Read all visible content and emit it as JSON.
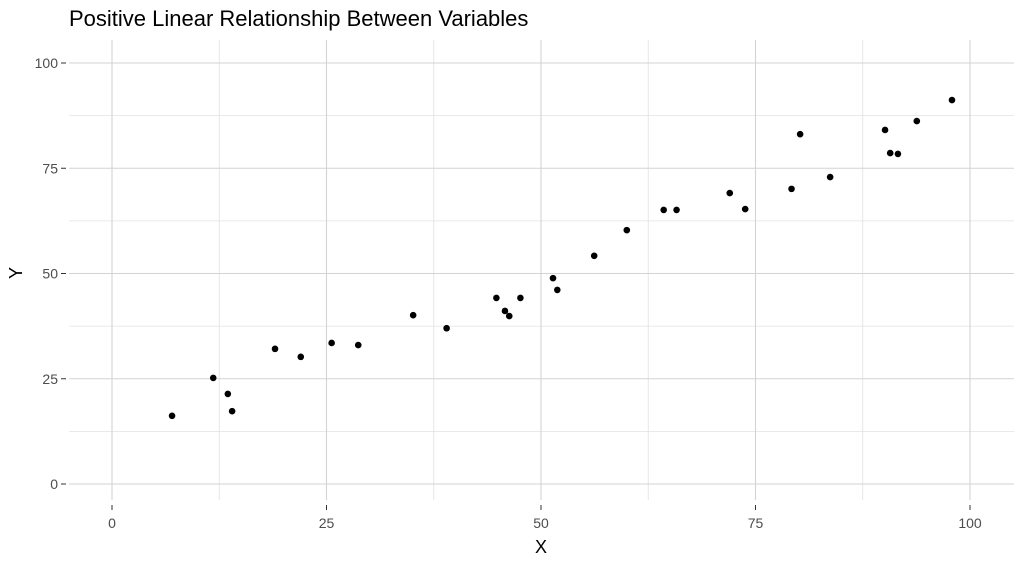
{
  "chart_data": {
    "type": "scatter",
    "title": "Positive Linear Relationship Between Variables",
    "xlabel": "X",
    "ylabel": "Y",
    "xlim": [
      -5,
      105
    ],
    "ylim": [
      -5,
      105
    ],
    "x_ticks": [
      0,
      25,
      50,
      75,
      100
    ],
    "y_ticks": [
      0,
      25,
      50,
      75,
      100
    ],
    "grid": true,
    "legend": null,
    "point_color": "#000000",
    "grid_color": "#d3d3d3",
    "points": [
      {
        "x": 7.0,
        "y": 16.2
      },
      {
        "x": 11.8,
        "y": 25.2
      },
      {
        "x": 13.5,
        "y": 21.4
      },
      {
        "x": 14.0,
        "y": 17.3
      },
      {
        "x": 19.0,
        "y": 32.1
      },
      {
        "x": 22.0,
        "y": 30.2
      },
      {
        "x": 25.6,
        "y": 33.5
      },
      {
        "x": 28.7,
        "y": 33.0
      },
      {
        "x": 35.1,
        "y": 40.1
      },
      {
        "x": 39.0,
        "y": 37.0
      },
      {
        "x": 44.8,
        "y": 44.2
      },
      {
        "x": 45.8,
        "y": 41.1
      },
      {
        "x": 46.3,
        "y": 39.9
      },
      {
        "x": 47.6,
        "y": 44.2
      },
      {
        "x": 51.4,
        "y": 48.9
      },
      {
        "x": 51.9,
        "y": 46.1
      },
      {
        "x": 56.2,
        "y": 54.2
      },
      {
        "x": 60.0,
        "y": 60.3
      },
      {
        "x": 64.3,
        "y": 65.1
      },
      {
        "x": 65.8,
        "y": 65.1
      },
      {
        "x": 72.0,
        "y": 69.1
      },
      {
        "x": 73.8,
        "y": 65.3
      },
      {
        "x": 79.2,
        "y": 70.1
      },
      {
        "x": 80.2,
        "y": 83.1
      },
      {
        "x": 83.7,
        "y": 72.9
      },
      {
        "x": 90.1,
        "y": 84.1
      },
      {
        "x": 90.7,
        "y": 78.6
      },
      {
        "x": 91.6,
        "y": 78.4
      },
      {
        "x": 93.8,
        "y": 86.2
      },
      {
        "x": 97.9,
        "y": 91.2
      }
    ]
  }
}
